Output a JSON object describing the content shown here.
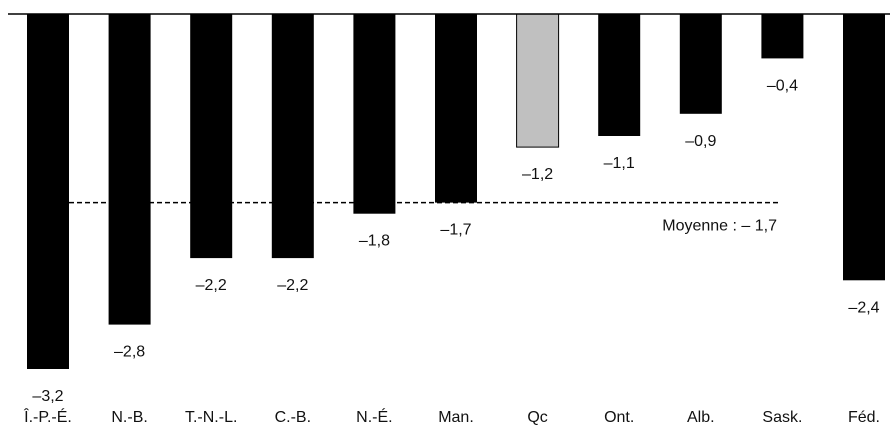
{
  "chart_data": {
    "type": "bar",
    "title": "",
    "xlabel": "",
    "ylabel": "",
    "categories": [
      "Î.-P.-É.",
      "N.-B.",
      "T.-N.-L.",
      "C.-B.",
      "N.-É.",
      "Man.",
      "Qc",
      "Ont.",
      "Alb.",
      "Sask.",
      "Féd."
    ],
    "values": [
      -3.2,
      -2.8,
      -2.2,
      -2.2,
      -1.8,
      -1.7,
      -1.2,
      -1.1,
      -0.9,
      -0.4,
      -2.4
    ],
    "value_labels": [
      "–3,2",
      "–2,8",
      "–2,2",
      "–2,2",
      "–1,8",
      "–1,7",
      "–1,2",
      "–1,1",
      "–0,9",
      "–0,4",
      "–2,4"
    ],
    "ylim": [
      -3.2,
      0
    ],
    "grid": false,
    "legend": "none",
    "colors": {
      "default": "#000000",
      "highlight": "#c0c0c0",
      "highlight_category": "Qc"
    },
    "average": {
      "value": -1.7,
      "label": "Moyenne : – 1,7"
    }
  }
}
